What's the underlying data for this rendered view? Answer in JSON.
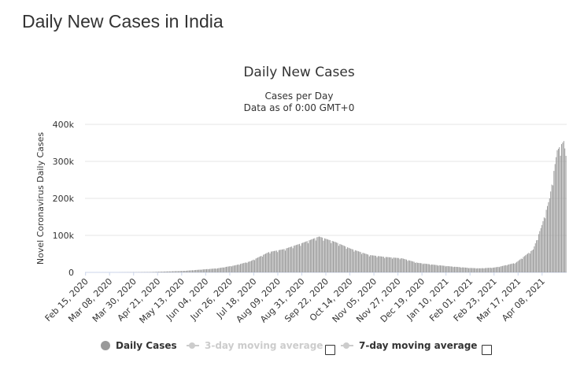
{
  "page": {
    "title": "Daily New Cases in India"
  },
  "chart_data": {
    "type": "bar",
    "title": "Daily New Cases",
    "subtitle_lines": [
      "Cases per Day",
      "Data as of 0:00 GMT+0"
    ],
    "xlabel": "",
    "ylabel": "Novel Coronavirus Daily Cases",
    "ylim": [
      0,
      400000
    ],
    "y_ticks": [
      "400k",
      "300k",
      "200k",
      "100k",
      "0"
    ],
    "x_tick_labels": [
      "Feb 15, 2020",
      "Mar 08, 2020",
      "Mar 30, 2020",
      "Apr 21, 2020",
      "May 13, 2020",
      "Jun 04, 2020",
      "Jun 26, 2020",
      "Jul 18, 2020",
      "Aug 09, 2020",
      "Aug 31, 2020",
      "Sep 22, 2020",
      "Oct 14, 2020",
      "Nov 05, 2020",
      "Nov 27, 2020",
      "Dec 19, 2020",
      "Jan 10, 2021",
      "Feb 01, 2021",
      "Feb 23, 2021",
      "Mar 17, 2021",
      "Apr 08, 2021"
    ],
    "grid": true,
    "legend_position": "bottom-center",
    "bar_color": "#999999",
    "series": [
      {
        "name": "Daily Cases",
        "x_start": "Feb 15, 2020",
        "x_end": "Apr 30, 2021",
        "interval": "daily",
        "anchors": [
          [
            "Feb 15, 2020",
            0
          ],
          [
            "Mar 15, 2020",
            100
          ],
          [
            "Apr 15, 2020",
            1000
          ],
          [
            "May 15, 2020",
            4000
          ],
          [
            "Jun 15, 2020",
            11000
          ],
          [
            "Jul 01, 2020",
            19000
          ],
          [
            "Jul 15, 2020",
            30000
          ],
          [
            "Aug 01, 2020",
            55000
          ],
          [
            "Aug 15, 2020",
            63000
          ],
          [
            "Sep 01, 2020",
            80000
          ],
          [
            "Sep 16, 2020",
            97000
          ],
          [
            "Oct 01, 2020",
            82000
          ],
          [
            "Oct 15, 2020",
            64000
          ],
          [
            "Nov 01, 2020",
            47000
          ],
          [
            "Nov 15, 2020",
            42000
          ],
          [
            "Dec 01, 2020",
            38000
          ],
          [
            "Dec 15, 2020",
            26000
          ],
          [
            "Jan 01, 2021",
            20000
          ],
          [
            "Jan 15, 2021",
            16000
          ],
          [
            "Feb 01, 2021",
            12000
          ],
          [
            "Feb 10, 2021",
            11000
          ],
          [
            "Feb 23, 2021",
            13000
          ],
          [
            "Mar 01, 2021",
            16000
          ],
          [
            "Mar 15, 2021",
            26000
          ],
          [
            "Mar 31, 2021",
            62000
          ],
          [
            "Apr 08, 2021",
            128000
          ],
          [
            "Apr 15, 2021",
            200000
          ],
          [
            "Apr 22, 2021",
            330000
          ],
          [
            "Apr 28, 2021",
            355000
          ],
          [
            "Apr 30, 2021",
            315000
          ]
        ]
      }
    ]
  },
  "legend": {
    "items": [
      {
        "label": "Daily Cases",
        "active": true
      },
      {
        "label": "3-day moving average",
        "active": false
      },
      {
        "label": "7-day moving average",
        "active": true
      }
    ]
  },
  "colors": {
    "text": "#333333",
    "grid": "#e6e6e6",
    "bar": "#999999",
    "legend_inactive": "#cccccc"
  }
}
